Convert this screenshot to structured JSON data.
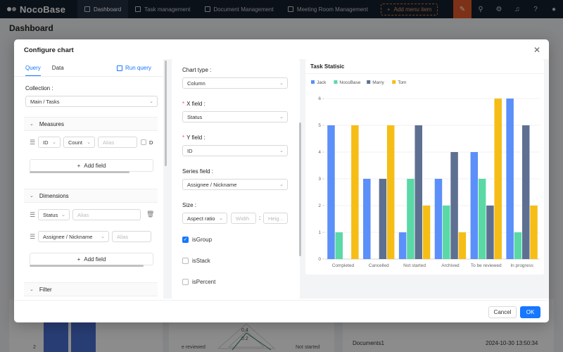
{
  "app": {
    "brand": "NocoBase",
    "nav": [
      {
        "label": "Dashboard",
        "active": true
      },
      {
        "label": "Task management",
        "active": false
      },
      {
        "label": "Document Management",
        "active": false
      },
      {
        "label": "Meeting Room Management",
        "active": false
      }
    ],
    "add_menu": "Add menu item"
  },
  "page": {
    "title": "Dashboard",
    "bg_row_label": "Documents1",
    "bg_row_time": "2024-10-30 13:50:34",
    "bg_tick_2": "2",
    "bg_label_left": "e reviewed",
    "bg_label_right": "Not started",
    "bg_radar_1": "0.4",
    "bg_radar_2": "0.2"
  },
  "modal": {
    "title": "Configure chart",
    "cancel_label": "Cancel",
    "ok_label": "OK"
  },
  "query": {
    "tab_query": "Query",
    "tab_data": "Data",
    "run_query": "Run query",
    "collection_label": "Collection",
    "collection_value": "Main  /  Tasks",
    "measures_label": "Measures",
    "measure_field": "ID",
    "measure_agg": "Count",
    "measure_alias_placeholder": "Alias",
    "measure_distinct": "D",
    "add_field": "Add field",
    "dimensions_label": "Dimensions",
    "dim1_field": "Status",
    "dim1_alias_placeholder": "Alias",
    "dim2_field": "Assignee  /  Nickname",
    "dim2_alias_placeholder": "Alias",
    "filter_label": "Filter"
  },
  "config": {
    "chart_type_label": "Chart type",
    "chart_type_value": "Column",
    "x_field_label": "X field",
    "x_field_value": "Status",
    "y_field_label": "Y field",
    "y_field_value": "ID",
    "series_field_label": "Series field",
    "series_field_value": "Assignee / Nickname",
    "size_label": "Size",
    "size_mode": "Aspect ratio",
    "width_placeholder": "Width",
    "height_placeholder": "Heig...",
    "size_sep": ":",
    "is_group_label": "isGroup",
    "is_group_checked": true,
    "is_stack_label": "isStack",
    "is_percent_label": "isPercent"
  },
  "chart_data": {
    "type": "bar",
    "title": "Task Statisic",
    "categories": [
      "Completed",
      "Cancelled",
      "Not started",
      "Archived",
      "To be reviewed",
      "In progress"
    ],
    "series": [
      {
        "name": "Jack",
        "color": "#5b8ff9",
        "values": [
          5,
          3,
          1,
          3,
          4,
          6
        ]
      },
      {
        "name": "NocoBase",
        "color": "#5ad8a6",
        "values": [
          1,
          0,
          3,
          2,
          3,
          1
        ]
      },
      {
        "name": "Marry",
        "color": "#5d7092",
        "values": [
          0,
          3,
          5,
          4,
          2,
          5
        ]
      },
      {
        "name": "Tom",
        "color": "#f6bd16",
        "values": [
          5,
          5,
          2,
          1,
          6,
          2
        ]
      }
    ],
    "yticks": [
      "0",
      "1",
      "2",
      "3",
      "4",
      "5",
      "6"
    ],
    "ylim": [
      0,
      6
    ],
    "legend": "top-left",
    "grid": true
  }
}
